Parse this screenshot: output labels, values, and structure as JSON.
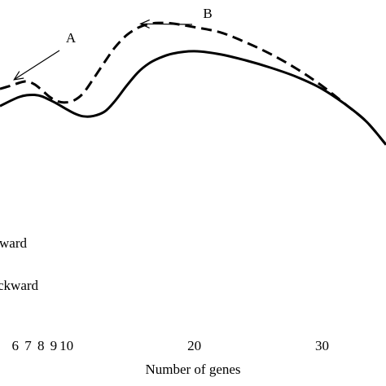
{
  "chart_data": {
    "type": "line",
    "title": "",
    "xlabel": "Number of genes",
    "ylabel": "",
    "xlim": [
      4.8,
      35
    ],
    "ylim": [
      0,
      1
    ],
    "x_ticks": [
      {
        "value": 6,
        "label": "6"
      },
      {
        "value": 7,
        "label": "7"
      },
      {
        "value": 8,
        "label": "8"
      },
      {
        "value": 9,
        "label": "9"
      },
      {
        "value": 10,
        "label": "10"
      },
      {
        "value": 20,
        "label": "20"
      },
      {
        "value": 30,
        "label": "30"
      }
    ],
    "grid": false,
    "legend_position": "bottom-left",
    "series": [
      {
        "legend_label": "ward",
        "line_style": "dashed",
        "color": "#000000",
        "x": [
          4.8,
          5.6,
          6.3,
          6.9,
          7.5,
          8.1,
          8.7,
          9.3,
          9.9,
          10.6,
          11.3,
          12.1,
          13.0,
          13.8,
          14.7,
          15.6,
          16.4,
          17.2,
          18.3,
          20.0,
          22.0,
          24.0,
          26.0,
          28.0,
          30.0,
          32.0,
          33.5,
          35.0
        ],
        "y": [
          0.705,
          0.715,
          0.725,
          0.73,
          0.72,
          0.7,
          0.678,
          0.664,
          0.66,
          0.667,
          0.69,
          0.738,
          0.795,
          0.843,
          0.883,
          0.908,
          0.92,
          0.924,
          0.922,
          0.91,
          0.893,
          0.86,
          0.82,
          0.772,
          0.715,
          0.648,
          0.595,
          0.52
        ]
      },
      {
        "legend_label": "ckward",
        "line_style": "solid",
        "color": "#000000",
        "x": [
          4.8,
          5.6,
          6.3,
          6.9,
          7.5,
          8.1,
          8.7,
          9.3,
          9.9,
          10.6,
          11.3,
          12.1,
          13.0,
          13.8,
          14.7,
          15.6,
          16.4,
          17.2,
          18.3,
          20.0,
          22.0,
          24.0,
          26.0,
          28.0,
          30.0,
          32.0,
          33.5,
          35.0
        ],
        "y": [
          0.648,
          0.665,
          0.678,
          0.684,
          0.685,
          0.68,
          0.668,
          0.655,
          0.64,
          0.624,
          0.614,
          0.615,
          0.63,
          0.665,
          0.715,
          0.76,
          0.788,
          0.806,
          0.822,
          0.83,
          0.82,
          0.8,
          0.775,
          0.745,
          0.705,
          0.648,
          0.595,
          0.52
        ]
      }
    ],
    "annotations": [
      {
        "text": "A",
        "points_to": {
          "x": 5.9,
          "y": 0.725
        }
      },
      {
        "text": "B",
        "points_to": {
          "x": 15.8,
          "y": 0.91
        }
      }
    ]
  }
}
